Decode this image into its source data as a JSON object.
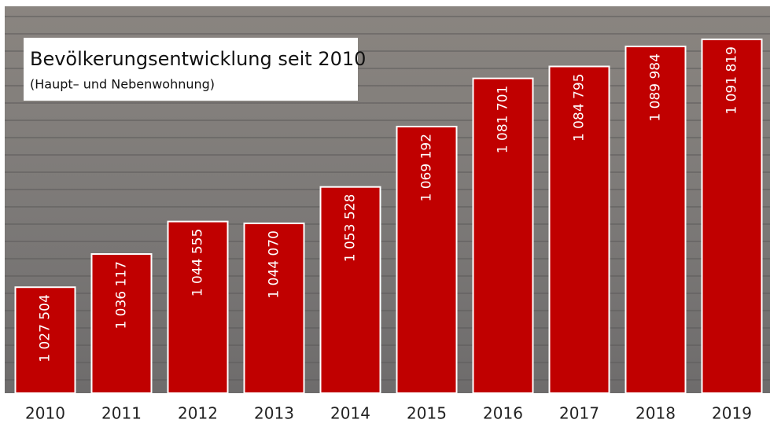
{
  "chart_data": {
    "type": "bar",
    "title": "Bevölkerungsentwicklung seit 2010",
    "subtitle": "(Haupt– und Nebenwohnung)",
    "categories": [
      "2010",
      "2011",
      "2012",
      "2013",
      "2014",
      "2015",
      "2016",
      "2017",
      "2018",
      "2019"
    ],
    "values": [
      1027504,
      1036117,
      1044555,
      1044070,
      1053528,
      1069192,
      1081701,
      1084795,
      1089984,
      1091819
    ],
    "value_labels": [
      "1 027 504",
      "1 036 117",
      "1 044 555",
      "1 044 070",
      "1 053 528",
      "1 069 192",
      "1 081 701",
      "1 084 795",
      "1 089 984",
      "1 091 819"
    ],
    "color": "#c00000",
    "ylim": [
      1000000,
      1100000
    ]
  }
}
